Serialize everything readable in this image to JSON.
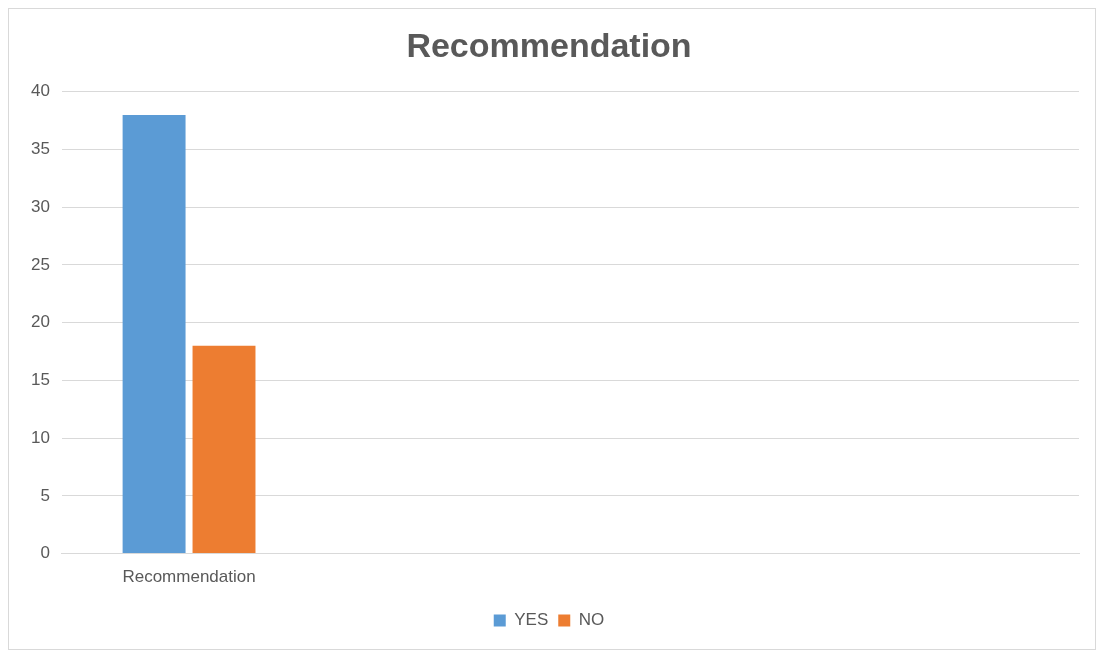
{
  "chart_data": {
    "type": "bar",
    "title": "Recommendation",
    "categories": [
      "Recommendation",
      null,
      null,
      null
    ],
    "series": [
      {
        "name": "YES",
        "color": "#5b9bd5",
        "values": [
          38,
          null,
          null,
          null
        ]
      },
      {
        "name": "NO",
        "color": "#ed7d31",
        "values": [
          18,
          null,
          null,
          null
        ]
      }
    ],
    "ylim": [
      0,
      40
    ],
    "yticks": [
      0,
      5,
      10,
      15,
      20,
      25,
      30,
      35,
      40
    ],
    "grid": "y",
    "legend": "bottom"
  }
}
